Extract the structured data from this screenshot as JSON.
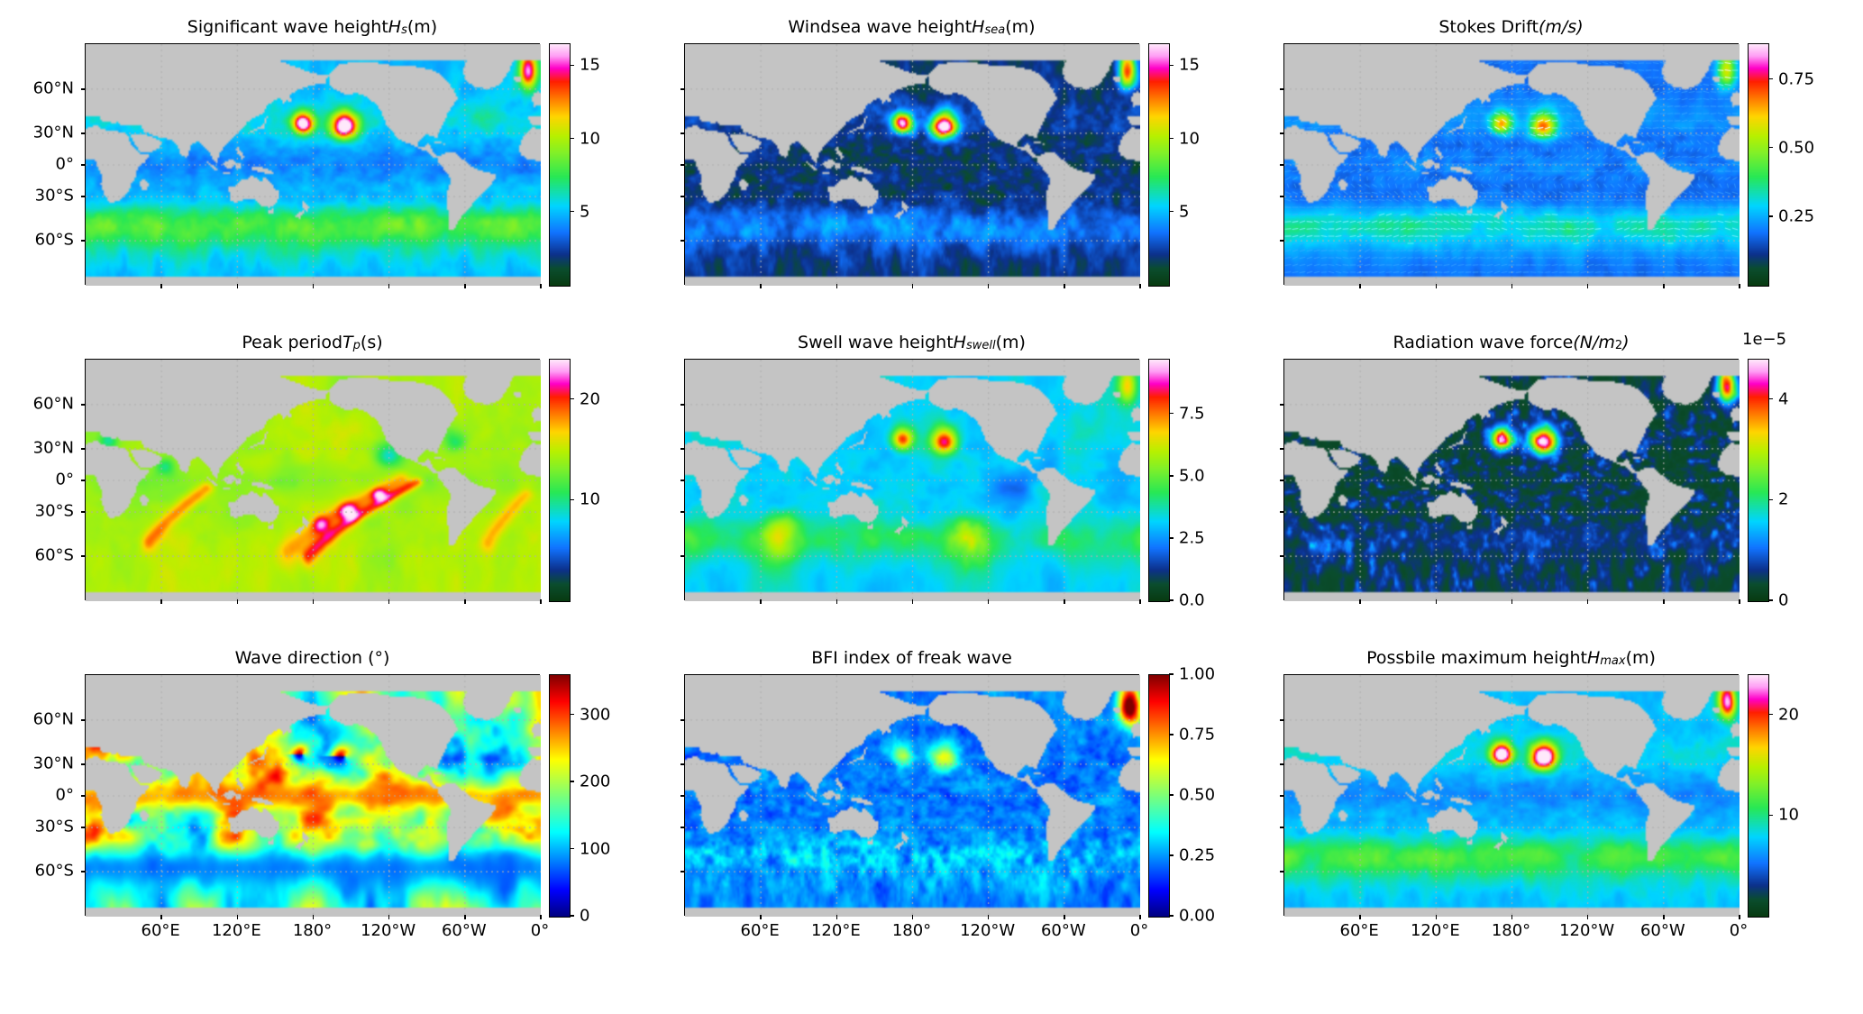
{
  "figure": {
    "background": "#ffffff",
    "land_color": "#c4c4c4",
    "grid_color": "#aaaaaa",
    "axis_color": "#000000",
    "layout": "3x3 grid of global ocean wave model maps, each with its own vertical colorbar"
  },
  "axes": {
    "projection": "mercator",
    "lon_range": [
      0,
      360
    ],
    "lat_range": [
      -76,
      76
    ],
    "grid": {
      "visible": true,
      "style": "dotted"
    },
    "lon_ticks": [
      {
        "lon": 60,
        "label": "60°E"
      },
      {
        "lon": 120,
        "label": "120°E"
      },
      {
        "lon": 180,
        "label": "180°"
      },
      {
        "lon": 240,
        "label": "120°W"
      },
      {
        "lon": 300,
        "label": "60°W"
      },
      {
        "lon": 360,
        "label": "0°"
      }
    ],
    "lat_ticks": [
      {
        "lat": 60,
        "label": "60°N"
      },
      {
        "lat": 30,
        "label": "30°N"
      },
      {
        "lat": 0,
        "label": "0°"
      },
      {
        "lat": -30,
        "label": "30°S"
      },
      {
        "lat": -60,
        "label": "60°S"
      }
    ]
  },
  "chart_data": [
    {
      "id": "hs",
      "type": "heatmap",
      "units": "m",
      "colormap": "ncar",
      "title": "Significant wave height Hs (m)",
      "title_parts": [
        [
          "Significant wave height ",
          "p"
        ],
        [
          "H",
          "i"
        ],
        [
          "s",
          "sub"
        ],
        [
          " (m)",
          "p"
        ]
      ],
      "value_range": [
        0,
        16.5
      ],
      "colorbar": {
        "ticks": [
          {
            "v": 5,
            "label": "5"
          },
          {
            "v": 10,
            "label": "10"
          },
          {
            "v": 15,
            "label": "15"
          }
        ]
      },
      "features": [
        "Two intense storm cells in the central North Pacific near 35-40N with Hs cores above 14 m",
        "Storm maximum near 70N close to the Norwegian Sea (top right)",
        "Band of 4-8 m waves along the Southern Ocean storm track (40-65S)",
        "Tropical oceans mostly 1-3 m"
      ]
    },
    {
      "id": "hsea",
      "type": "heatmap",
      "units": "m",
      "colormap": "ncar",
      "title": "Windsea wave height Hsea (m)",
      "title_parts": [
        [
          "Windsea wave height ",
          "p"
        ],
        [
          "H",
          "i"
        ],
        [
          "sea",
          "sub"
        ],
        [
          " (m)",
          "p"
        ]
      ],
      "value_range": [
        0,
        16.5
      ],
      "colorbar": {
        "ticks": [
          {
            "v": 5,
            "label": "5"
          },
          {
            "v": 10,
            "label": "10"
          },
          {
            "v": 15,
            "label": "15"
          }
        ]
      },
      "features": [
        "Same two North Pacific storm cells dominate the windsea (>12 m cores)",
        "Background windsea mostly below 2 m (dark field)",
        "Patchy 3-6 m windsea along the Southern Ocean storm track"
      ]
    },
    {
      "id": "stokes",
      "type": "heatmap",
      "units": "m/s",
      "colormap": "ncar",
      "quiver": true,
      "title": "Stokes Drift (m/s)",
      "title_parts": [
        [
          "Stokes Drift ",
          "p"
        ],
        [
          "(m/s)",
          "i"
        ]
      ],
      "value_range": [
        0,
        0.88
      ],
      "colorbar": {
        "ticks": [
          {
            "v": 0.25,
            "label": "0.25"
          },
          {
            "v": 0.5,
            "label": "0.50"
          },
          {
            "v": 0.75,
            "label": "0.75"
          }
        ]
      },
      "features": [
        "Arrow field shows Stokes drift direction over shaded magnitude",
        "Drift up to about 0.6-0.8 m/s in the North Pacific storms and Southern Ocean",
        "Westward drift in the trade-wind belts, eastward in mid-latitude storm tracks"
      ]
    },
    {
      "id": "tp",
      "type": "heatmap",
      "units": "s",
      "colormap": "ncar",
      "title": "Peak period Tp (s)",
      "title_parts": [
        [
          "Peak period ",
          "p"
        ],
        [
          "T",
          "i"
        ],
        [
          "p",
          "sub"
        ],
        [
          " (s)",
          "p"
        ]
      ],
      "value_range": [
        0,
        24
      ],
      "colorbar": {
        "ticks": [
          {
            "v": 10,
            "label": "10"
          },
          {
            "v": 20,
            "label": "20"
          }
        ]
      },
      "features": [
        "Peak periods mostly 10-16 s (green/yellow) over the open ocean",
        "Long-period swell fronts of 18-24 s (orange/red/magenta arcs) crossing the Pacific and Indian Oceans toward the northeast",
        "Short periods in coastal and enclosed seas (cyan patches)"
      ]
    },
    {
      "id": "swell",
      "type": "heatmap",
      "units": "m",
      "colormap": "ncar",
      "title": "Swell wave height Hswell (m)",
      "title_parts": [
        [
          "Swell wave height ",
          "p"
        ],
        [
          "H",
          "i"
        ],
        [
          "swell",
          "sub"
        ],
        [
          " (m)",
          "p"
        ]
      ],
      "value_range": [
        0,
        9.7
      ],
      "colorbar": {
        "ticks": [
          {
            "v": 0,
            "label": "0.0"
          },
          {
            "v": 2.5,
            "label": "2.5"
          },
          {
            "v": 5,
            "label": "5.0"
          },
          {
            "v": 7.5,
            "label": "7.5"
          }
        ]
      },
      "features": [
        "Swell heights of 1-3 m over most basins",
        "North Pacific storms radiate swell above 7 m",
        "Broad 3-5 m swell patches in the southern Indian and Pacific Oceans"
      ]
    },
    {
      "id": "radiation",
      "type": "heatmap",
      "units": "N/m^2",
      "scale": "1e-5",
      "colormap": "ncar",
      "title": "Radiation wave force (N/m2)",
      "title_parts": [
        [
          "Radiation wave force ",
          "p"
        ],
        [
          "(N/m",
          "i"
        ],
        [
          "2",
          "sup"
        ],
        [
          ")",
          "i"
        ]
      ],
      "value_range": [
        0,
        4.8
      ],
      "colorbar": {
        "offset_label": "1e−5",
        "ticks": [
          {
            "v": 0,
            "label": "0"
          },
          {
            "v": 2,
            "label": "2"
          },
          {
            "v": 4,
            "label": "4"
          }
        ]
      },
      "features": [
        "Radiation force negligible (below 1e-5 N/m2) over most of the ocean (dark field)",
        "Narrow swirling filaments up to about 4.5e-5 N/m2 around the North Pacific storm cells and the Norwegian Sea storm"
      ]
    },
    {
      "id": "direction",
      "type": "heatmap",
      "units": "degrees",
      "colormap": "jet",
      "title": "Wave direction (°)",
      "title_parts": [
        [
          "Wave direction (°)",
          "p"
        ]
      ],
      "value_range": [
        0,
        360
      ],
      "colorbar": {
        "ticks": [
          {
            "v": 0,
            "label": "0"
          },
          {
            "v": 100,
            "label": "100"
          },
          {
            "v": 200,
            "label": "200"
          },
          {
            "v": 300,
            "label": "300"
          }
        ]
      },
      "features": [
        "Directions of 150-300 degrees (warm colors) across the tropical and North Pacific and Indian Ocean",
        "Southern Ocean dominated by 0-100 degree directions (blue/cyan band)",
        "Full directional rotation (rainbow wheels) around the North Pacific cyclones"
      ]
    },
    {
      "id": "bfi",
      "type": "heatmap",
      "units": "",
      "colormap": "jet",
      "title": "BFI index of freak wave",
      "title_parts": [
        [
          "BFI index of freak wave",
          "p"
        ]
      ],
      "value_range": [
        0,
        1
      ],
      "colorbar": {
        "ticks": [
          {
            "v": 0,
            "label": "0.00"
          },
          {
            "v": 0.25,
            "label": "0.25"
          },
          {
            "v": 0.5,
            "label": "0.50"
          },
          {
            "v": 0.75,
            "label": "0.75"
          },
          {
            "v": 1,
            "label": "1.00"
          }
        ]
      },
      "features": [
        "BFI mostly below 0.25 (dark blue) with cyan speckle",
        "Values up to about 0.6 near the North Pacific storm cells",
        "Maximum close to 1.0 in the Norwegian Sea storm (top right)"
      ]
    },
    {
      "id": "hmax",
      "type": "heatmap",
      "units": "m",
      "colormap": "ncar",
      "title": "Possbile maximum height Hmax (m)",
      "title_parts": [
        [
          "Possbile maximum height ",
          "p"
        ],
        [
          "H",
          "i"
        ],
        [
          "max",
          "sub"
        ],
        [
          " (m)",
          "p"
        ]
      ],
      "value_range": [
        0,
        24
      ],
      "colorbar": {
        "ticks": [
          {
            "v": 10,
            "label": "10"
          },
          {
            "v": 20,
            "label": "20"
          }
        ]
      },
      "features": [
        "Spatial pattern mirrors significant wave height",
        "Possible maximum heights exceed 20 m in the two North Pacific storm cells",
        "10-14 m maxima along the Southern Ocean storm track"
      ]
    }
  ]
}
